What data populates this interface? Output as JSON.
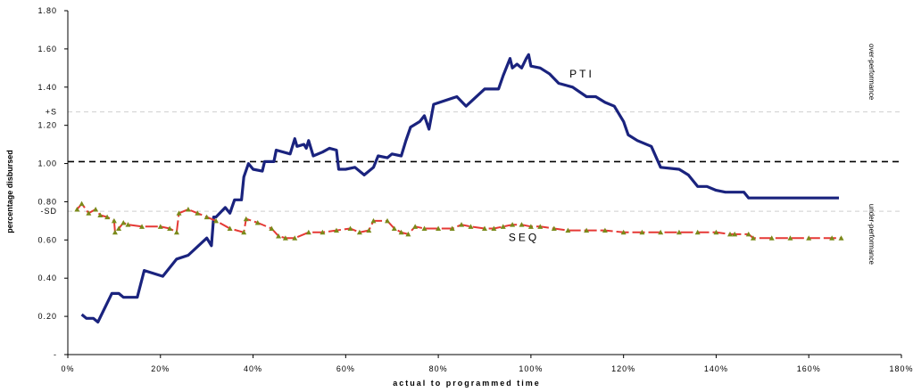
{
  "chart_data": {
    "type": "line",
    "title": "",
    "xlabel": "actual to programmed time",
    "ylabel": "percentage disbursed",
    "xlim": [
      0,
      1.8
    ],
    "ylim": [
      0,
      1.8
    ],
    "x_ticks": [
      "0%",
      "20%",
      "40%",
      "60%",
      "80%",
      "100%",
      "120%",
      "140%",
      "160%",
      "180%"
    ],
    "y_ticks": [
      "-",
      "0.20",
      "0.40",
      "0.60",
      "0.80",
      "1.00",
      "1.20",
      "1.40",
      "1.60",
      "1.80"
    ],
    "grid": false,
    "reference_lines": [
      {
        "label": "",
        "y": 1.01,
        "style": "dashed-black"
      },
      {
        "label": "+S",
        "y": 1.27,
        "style": "dashed-light"
      },
      {
        "label": "-SD",
        "y": 0.75,
        "style": "dashed-light"
      }
    ],
    "annotations": [
      {
        "text": "over-performance",
        "side": "right"
      },
      {
        "text": "under-performance",
        "side": "right"
      }
    ],
    "series": [
      {
        "name": "PTI",
        "color": "#1a237e",
        "points": [
          [
            0.03,
            0.21
          ],
          [
            0.04,
            0.19
          ],
          [
            0.055,
            0.19
          ],
          [
            0.065,
            0.17
          ],
          [
            0.095,
            0.32
          ],
          [
            0.11,
            0.32
          ],
          [
            0.12,
            0.3
          ],
          [
            0.15,
            0.3
          ],
          [
            0.165,
            0.44
          ],
          [
            0.205,
            0.41
          ],
          [
            0.235,
            0.5
          ],
          [
            0.26,
            0.52
          ],
          [
            0.3,
            0.61
          ],
          [
            0.31,
            0.57
          ],
          [
            0.315,
            0.72
          ],
          [
            0.32,
            0.72
          ],
          [
            0.34,
            0.77
          ],
          [
            0.35,
            0.74
          ],
          [
            0.36,
            0.81
          ],
          [
            0.375,
            0.81
          ],
          [
            0.38,
            0.93
          ],
          [
            0.39,
            1.0
          ],
          [
            0.4,
            0.97
          ],
          [
            0.42,
            0.96
          ],
          [
            0.425,
            1.01
          ],
          [
            0.445,
            1.01
          ],
          [
            0.45,
            1.07
          ],
          [
            0.48,
            1.05
          ],
          [
            0.49,
            1.13
          ],
          [
            0.495,
            1.09
          ],
          [
            0.51,
            1.1
          ],
          [
            0.515,
            1.08
          ],
          [
            0.52,
            1.12
          ],
          [
            0.53,
            1.04
          ],
          [
            0.55,
            1.06
          ],
          [
            0.565,
            1.08
          ],
          [
            0.58,
            1.07
          ],
          [
            0.585,
            0.97
          ],
          [
            0.6,
            0.97
          ],
          [
            0.62,
            0.98
          ],
          [
            0.64,
            0.94
          ],
          [
            0.66,
            0.98
          ],
          [
            0.67,
            1.04
          ],
          [
            0.69,
            1.03
          ],
          [
            0.7,
            1.05
          ],
          [
            0.72,
            1.04
          ],
          [
            0.73,
            1.12
          ],
          [
            0.74,
            1.19
          ],
          [
            0.76,
            1.22
          ],
          [
            0.77,
            1.25
          ],
          [
            0.78,
            1.18
          ],
          [
            0.79,
            1.31
          ],
          [
            0.84,
            1.35
          ],
          [
            0.86,
            1.3
          ],
          [
            0.9,
            1.39
          ],
          [
            0.93,
            1.39
          ],
          [
            0.94,
            1.46
          ],
          [
            0.955,
            1.55
          ],
          [
            0.96,
            1.5
          ],
          [
            0.97,
            1.52
          ],
          [
            0.98,
            1.5
          ],
          [
            0.99,
            1.55
          ],
          [
            0.995,
            1.57
          ],
          [
            1.0,
            1.51
          ],
          [
            1.02,
            1.5
          ],
          [
            1.04,
            1.47
          ],
          [
            1.06,
            1.42
          ],
          [
            1.09,
            1.4
          ],
          [
            1.12,
            1.35
          ],
          [
            1.14,
            1.35
          ],
          [
            1.16,
            1.32
          ],
          [
            1.18,
            1.3
          ],
          [
            1.2,
            1.22
          ],
          [
            1.21,
            1.15
          ],
          [
            1.23,
            1.12
          ],
          [
            1.26,
            1.09
          ],
          [
            1.28,
            0.98
          ],
          [
            1.32,
            0.97
          ],
          [
            1.34,
            0.94
          ],
          [
            1.36,
            0.88
          ],
          [
            1.38,
            0.88
          ],
          [
            1.4,
            0.86
          ],
          [
            1.42,
            0.85
          ],
          [
            1.46,
            0.85
          ],
          [
            1.47,
            0.82
          ],
          [
            1.52,
            0.82
          ],
          [
            1.62,
            0.82
          ],
          [
            1.665,
            0.82
          ]
        ]
      },
      {
        "name": "SEQ",
        "color": "#e53935",
        "marker_color": "#7a8a1a",
        "points": [
          [
            0.02,
            0.76
          ],
          [
            0.03,
            0.79
          ],
          [
            0.045,
            0.74
          ],
          [
            0.06,
            0.76
          ],
          [
            0.07,
            0.73
          ],
          [
            0.085,
            0.72
          ],
          [
            0.1,
            0.7
          ],
          [
            0.102,
            0.64
          ],
          [
            0.11,
            0.66
          ],
          [
            0.12,
            0.69
          ],
          [
            0.13,
            0.68
          ],
          [
            0.16,
            0.67
          ],
          [
            0.2,
            0.67
          ],
          [
            0.22,
            0.66
          ],
          [
            0.235,
            0.64
          ],
          [
            0.24,
            0.74
          ],
          [
            0.26,
            0.76
          ],
          [
            0.28,
            0.74
          ],
          [
            0.3,
            0.72
          ],
          [
            0.32,
            0.7
          ],
          [
            0.35,
            0.66
          ],
          [
            0.38,
            0.64
          ],
          [
            0.385,
            0.71
          ],
          [
            0.41,
            0.69
          ],
          [
            0.44,
            0.66
          ],
          [
            0.455,
            0.62
          ],
          [
            0.47,
            0.61
          ],
          [
            0.49,
            0.61
          ],
          [
            0.52,
            0.64
          ],
          [
            0.55,
            0.64
          ],
          [
            0.58,
            0.65
          ],
          [
            0.61,
            0.66
          ],
          [
            0.63,
            0.64
          ],
          [
            0.65,
            0.65
          ],
          [
            0.66,
            0.7
          ],
          [
            0.69,
            0.7
          ],
          [
            0.705,
            0.66
          ],
          [
            0.72,
            0.64
          ],
          [
            0.735,
            0.63
          ],
          [
            0.75,
            0.67
          ],
          [
            0.77,
            0.66
          ],
          [
            0.8,
            0.66
          ],
          [
            0.83,
            0.66
          ],
          [
            0.85,
            0.68
          ],
          [
            0.87,
            0.67
          ],
          [
            0.9,
            0.66
          ],
          [
            0.92,
            0.66
          ],
          [
            0.94,
            0.67
          ],
          [
            0.96,
            0.68
          ],
          [
            0.98,
            0.68
          ],
          [
            1.0,
            0.67
          ],
          [
            1.02,
            0.67
          ],
          [
            1.05,
            0.66
          ],
          [
            1.08,
            0.65
          ],
          [
            1.12,
            0.65
          ],
          [
            1.16,
            0.65
          ],
          [
            1.2,
            0.64
          ],
          [
            1.24,
            0.64
          ],
          [
            1.28,
            0.64
          ],
          [
            1.32,
            0.64
          ],
          [
            1.36,
            0.64
          ],
          [
            1.4,
            0.64
          ],
          [
            1.43,
            0.63
          ],
          [
            1.44,
            0.63
          ],
          [
            1.47,
            0.63
          ],
          [
            1.48,
            0.61
          ],
          [
            1.52,
            0.61
          ],
          [
            1.56,
            0.61
          ],
          [
            1.6,
            0.61
          ],
          [
            1.65,
            0.61
          ],
          [
            1.67,
            0.61
          ]
        ]
      }
    ]
  }
}
